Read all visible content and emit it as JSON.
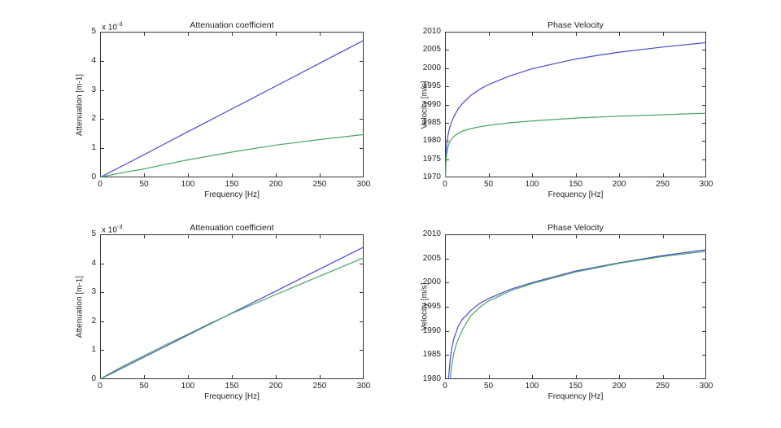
{
  "colors": {
    "background": "#ffffff",
    "axis": "#333333",
    "text": "#1f1f1f",
    "series_blue": "#4949d0",
    "series_green": "#46a562"
  },
  "chart_data": [
    {
      "type": "line",
      "title": "Attenuation coefficient",
      "xlabel": "Frequency [Hz]",
      "ylabel": "Attenuation [m-1]",
      "y_multiplier_base": "x 10",
      "y_multiplier_exp": "-3",
      "xlim": [
        0,
        300
      ],
      "ylim": [
        0,
        5
      ],
      "xticks": [
        0,
        50,
        100,
        150,
        200,
        250,
        300
      ],
      "yticks": [
        0,
        1,
        2,
        3,
        4,
        5
      ],
      "grid": false,
      "legend": "none",
      "series": [
        {
          "name": "blue",
          "color": "#4949d0",
          "x": [
            0,
            50,
            100,
            150,
            200,
            250,
            300
          ],
          "y": [
            0,
            0.78,
            1.57,
            2.35,
            3.13,
            3.92,
            4.7
          ]
        },
        {
          "name": "green",
          "color": "#46a562",
          "x": [
            0,
            10,
            25,
            50,
            75,
            100,
            150,
            200,
            250,
            300
          ],
          "y": [
            0,
            0.07,
            0.16,
            0.29,
            0.45,
            0.6,
            0.87,
            1.11,
            1.3,
            1.47
          ]
        }
      ]
    },
    {
      "type": "line",
      "title": "Phase Velocity",
      "xlabel": "Frequency [Hz]",
      "ylabel": "Velocity [m/s]",
      "xlim": [
        0,
        300
      ],
      "ylim": [
        1970,
        2010
      ],
      "xticks": [
        0,
        50,
        100,
        150,
        200,
        250,
        300
      ],
      "yticks": [
        1970,
        1975,
        1980,
        1985,
        1990,
        1995,
        2000,
        2005,
        2010
      ],
      "grid": false,
      "legend": "none",
      "series": [
        {
          "name": "blue",
          "color": "#4949d0",
          "x": [
            0.5,
            1,
            2,
            3,
            5,
            7,
            10,
            15,
            20,
            30,
            40,
            50,
            75,
            100,
            125,
            150,
            175,
            200,
            250,
            300
          ],
          "y": [
            1970,
            1975.5,
            1979,
            1981,
            1983.3,
            1984.9,
            1986.6,
            1988.8,
            1990.3,
            1992.6,
            1994.2,
            1995.5,
            1997.9,
            1999.8,
            2001.2,
            2002.5,
            2003.5,
            2004.4,
            2005.8,
            2007
          ]
        },
        {
          "name": "green",
          "color": "#46a562",
          "x": [
            0.5,
            1,
            2,
            3,
            5,
            7,
            10,
            15,
            20,
            30,
            40,
            50,
            75,
            100,
            150,
            200,
            250,
            300
          ],
          "y": [
            1970,
            1973.8,
            1976.5,
            1978,
            1979.5,
            1980.4,
            1981.2,
            1982.1,
            1982.7,
            1983.4,
            1983.9,
            1984.3,
            1985.0,
            1985.5,
            1986.3,
            1986.8,
            1987.2,
            1987.6
          ]
        }
      ]
    },
    {
      "type": "line",
      "title": "Attenuation coefficient",
      "xlabel": "Frequency [Hz]",
      "ylabel": "Attenuation [m-1]",
      "y_multiplier_base": "x 10",
      "y_multiplier_exp": "-3",
      "xlim": [
        0,
        300
      ],
      "ylim": [
        0,
        5
      ],
      "xticks": [
        0,
        50,
        100,
        150,
        200,
        250,
        300
      ],
      "yticks": [
        0,
        1,
        2,
        3,
        4,
        5
      ],
      "grid": false,
      "legend": "none",
      "series": [
        {
          "name": "blue",
          "color": "#4949d0",
          "x": [
            0,
            50,
            100,
            150,
            200,
            250,
            300
          ],
          "y": [
            0,
            0.76,
            1.52,
            2.28,
            3.04,
            3.8,
            4.56
          ]
        },
        {
          "name": "green",
          "color": "#46a562",
          "x": [
            0,
            10,
            25,
            50,
            75,
            100,
            125,
            150,
            200,
            250,
            300
          ],
          "y": [
            0,
            0.18,
            0.43,
            0.81,
            1.19,
            1.55,
            1.92,
            2.27,
            2.92,
            3.56,
            4.19
          ]
        }
      ]
    },
    {
      "type": "line",
      "title": "Phase Velocity",
      "xlabel": "Frequency [Hz]",
      "ylabel": "Velocity [m/s]",
      "xlim": [
        0,
        300
      ],
      "ylim": [
        1980,
        2010
      ],
      "xticks": [
        0,
        50,
        100,
        150,
        200,
        250,
        300
      ],
      "yticks": [
        1980,
        1985,
        1990,
        1995,
        2000,
        2005,
        2010
      ],
      "grid": false,
      "legend": "none",
      "series": [
        {
          "name": "blue",
          "color": "#4949d0",
          "x": [
            4,
            6,
            8,
            10,
            15,
            20,
            30,
            40,
            50,
            75,
            100,
            150,
            200,
            250,
            300
          ],
          "y": [
            1980,
            1984.2,
            1986.6,
            1988.3,
            1990.9,
            1992.4,
            1994.3,
            1995.7,
            1996.7,
            1998.6,
            2000.0,
            2002.4,
            2004.1,
            2005.6,
            2006.8
          ]
        },
        {
          "name": "green",
          "color": "#46a562",
          "x": [
            6,
            8,
            10,
            12,
            15,
            20,
            30,
            40,
            50,
            75,
            100,
            150,
            200,
            250,
            300
          ],
          "y": [
            1980,
            1983.2,
            1985.2,
            1986.6,
            1988.2,
            1990.3,
            1993.2,
            1994.9,
            1996.2,
            1998.3,
            1999.8,
            2002.2,
            2004.0,
            2005.4,
            2006.5
          ]
        }
      ]
    }
  ]
}
